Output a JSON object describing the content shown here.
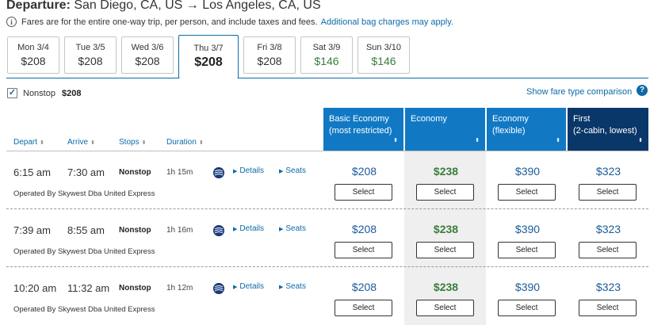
{
  "header": {
    "departure_label": "Departure:",
    "route": "San Diego, CA, US → Los Angeles, CA, US",
    "notice": "Fares are for the entire one-way trip, per person, and include taxes and fees.",
    "bag_link": "Additional bag charges may apply."
  },
  "date_tabs": [
    {
      "date": "Mon 3/4",
      "price": "$208"
    },
    {
      "date": "Tue 3/5",
      "price": "$208"
    },
    {
      "date": "Wed 3/6",
      "price": "$208"
    },
    {
      "date": "Thu 3/7",
      "price": "$208"
    },
    {
      "date": "Fri 3/8",
      "price": "$208"
    },
    {
      "date": "Sat 3/9",
      "price": "$146"
    },
    {
      "date": "Sun 3/10",
      "price": "$146"
    }
  ],
  "filter": {
    "nonstop_label": "Nonstop",
    "nonstop_price": "$208",
    "nonstop_checked": true,
    "fare_compare": "Show fare type comparison"
  },
  "columns": {
    "depart": "Depart",
    "arrive": "Arrive",
    "stops": "Stops",
    "duration": "Duration"
  },
  "cabins": [
    {
      "line1": "Basic Economy",
      "line2": "(most restricted)"
    },
    {
      "line1": "Economy",
      "line2": ""
    },
    {
      "line1": "Economy",
      "line2": "(flexible)"
    },
    {
      "line1": "First",
      "line2": "(2-cabin, lowest)"
    }
  ],
  "links": {
    "details": "Details",
    "seats": "Seats",
    "select": "Select"
  },
  "flights": [
    {
      "depart": "6:15 am",
      "arrive": "7:30 am",
      "stops": "Nonstop",
      "duration": "1h 15m",
      "operated": "Operated By Skywest Dba United Express",
      "fares": [
        "$208",
        "$238",
        "$390",
        "$323"
      ]
    },
    {
      "depart": "7:39 am",
      "arrive": "8:55 am",
      "stops": "Nonstop",
      "duration": "1h 16m",
      "operated": "Operated By Skywest Dba United Express",
      "fares": [
        "$208",
        "$238",
        "$390",
        "$323"
      ]
    },
    {
      "depart": "10:20 am",
      "arrive": "11:32 am",
      "stops": "Nonstop",
      "duration": "1h 12m",
      "operated": "Operated By Skywest Dba United Express",
      "fares": [
        "$208",
        "$238",
        "$390",
        "$323"
      ]
    }
  ],
  "colors": {
    "accent": "#0c6aa8",
    "cabin_blue": "#1179c4",
    "cabin_dark": "#0a3769",
    "economy_green": "#3a7d3a"
  }
}
